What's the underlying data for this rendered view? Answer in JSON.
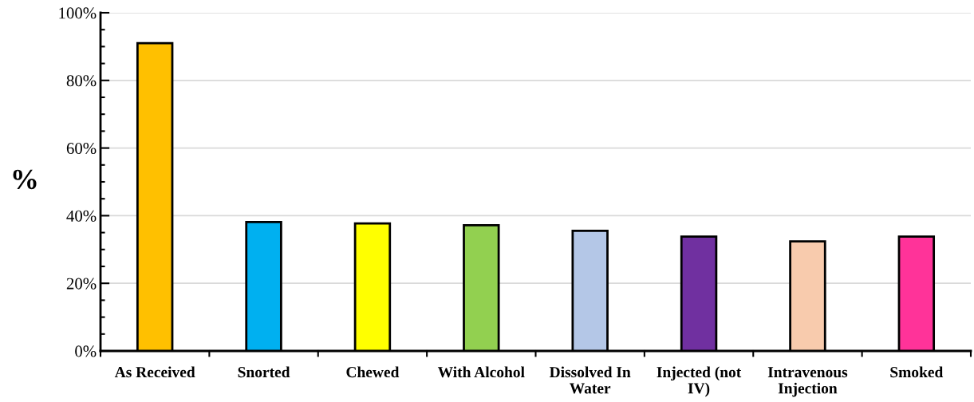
{
  "chart_data": {
    "type": "bar",
    "ylabel": "%",
    "categories": [
      "As Received",
      "Snorted",
      "Chewed",
      "With Alcohol",
      "Dissolved In\nWater",
      "Injected (not\nIV)",
      "Intravenous\nInjection",
      "Smoked"
    ],
    "values": [
      91,
      38.1,
      37.7,
      37.2,
      35.5,
      33.8,
      32.4,
      33.8
    ],
    "colors": [
      "#ffc000",
      "#00b0f0",
      "#ffff00",
      "#92d050",
      "#b4c7e7",
      "#7030a0",
      "#f8cbad",
      "#ff3399"
    ],
    "ylim": [
      0,
      100
    ],
    "yticks": [
      {
        "value": 0,
        "label": "0%"
      },
      {
        "value": 20,
        "label": "20%"
      },
      {
        "value": 40,
        "label": "40%"
      },
      {
        "value": 60,
        "label": "60%"
      },
      {
        "value": 80,
        "label": "80%"
      },
      {
        "value": 100,
        "label": "100%"
      }
    ],
    "grid": "y",
    "legend": false
  }
}
